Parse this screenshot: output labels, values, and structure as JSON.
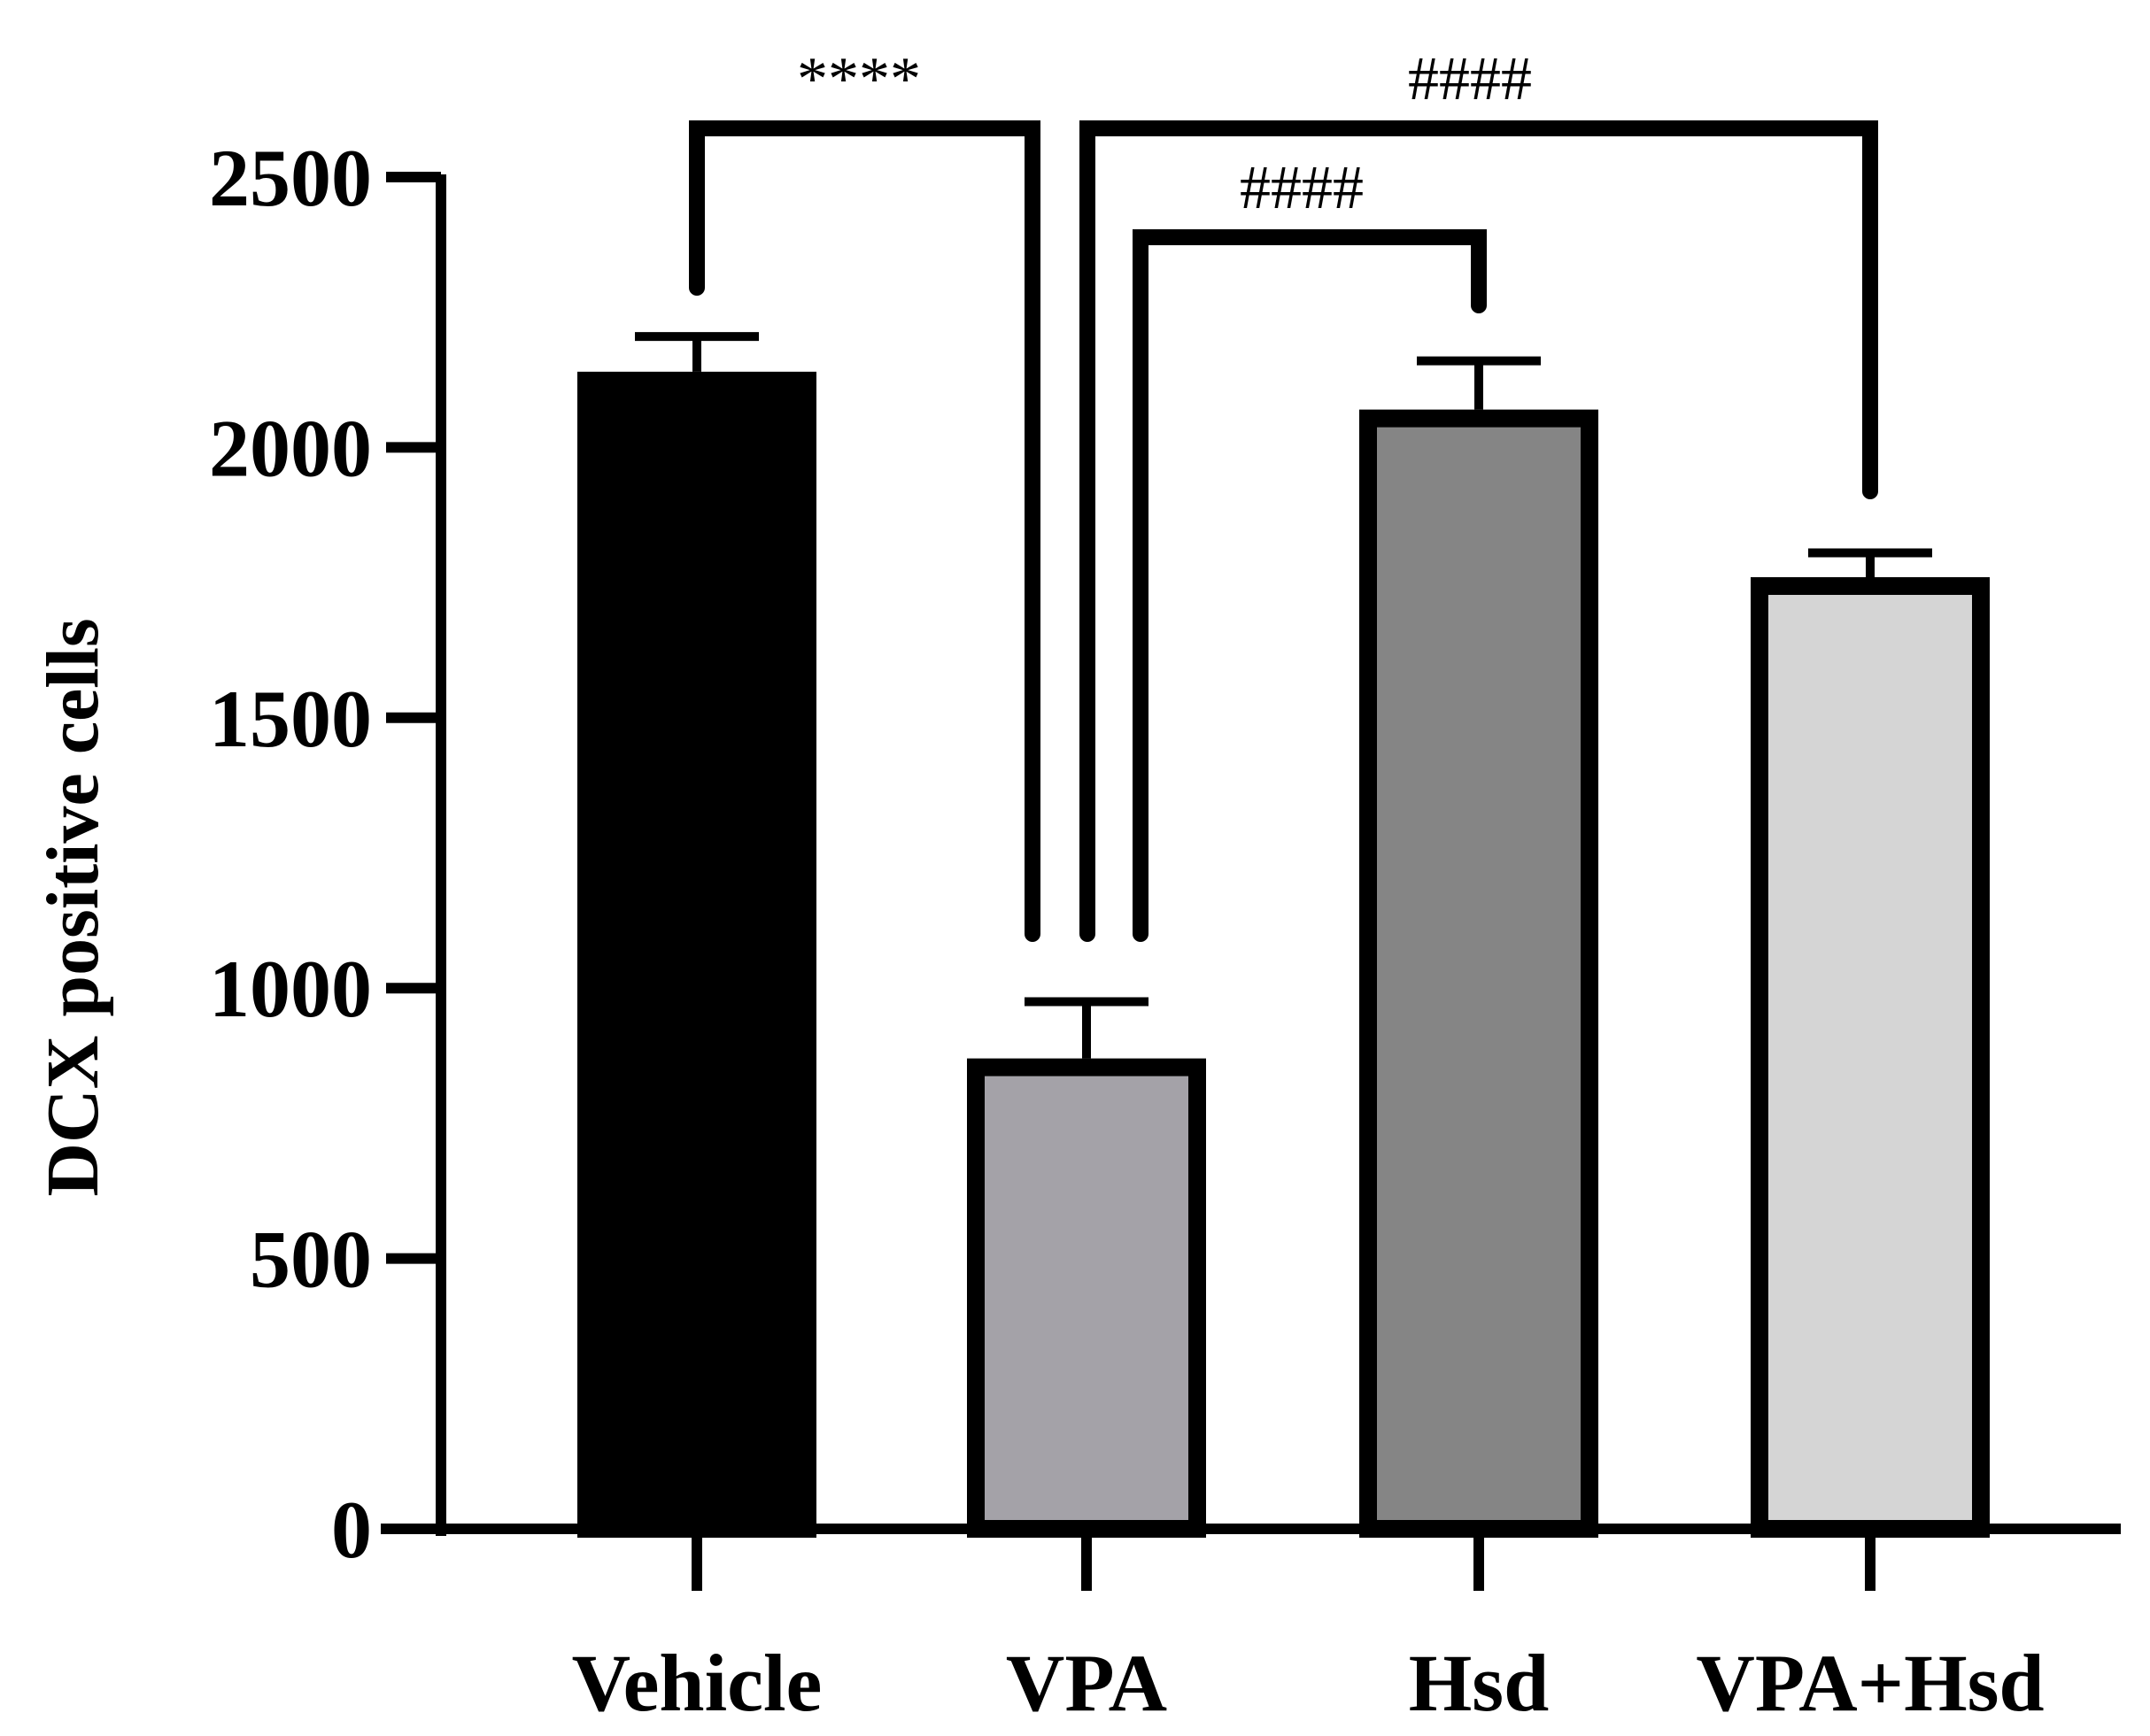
{
  "chart_data": {
    "type": "bar",
    "title": "",
    "xlabel": "",
    "ylabel": "DCX positive cells",
    "ylim": [
      0,
      2500
    ],
    "yticks": [
      0,
      500,
      1000,
      1500,
      2000,
      2500
    ],
    "categories": [
      "Vehicle",
      "VPA",
      "Hsd",
      "VPA+Hsd"
    ],
    "values": [
      2140,
      870,
      2070,
      1760
    ],
    "errors": [
      65,
      105,
      90,
      45
    ],
    "bar_colors": [
      "#000000",
      "#a4a2a8",
      "#858585",
      "#d5d5d5"
    ],
    "grid": false,
    "significance": [
      {
        "from": "Vehicle",
        "to": "VPA",
        "label": "****"
      },
      {
        "from": "VPA",
        "to": "Hsd",
        "label": "####"
      },
      {
        "from": "VPA",
        "to": "VPA+Hsd",
        "label": "####"
      }
    ]
  }
}
